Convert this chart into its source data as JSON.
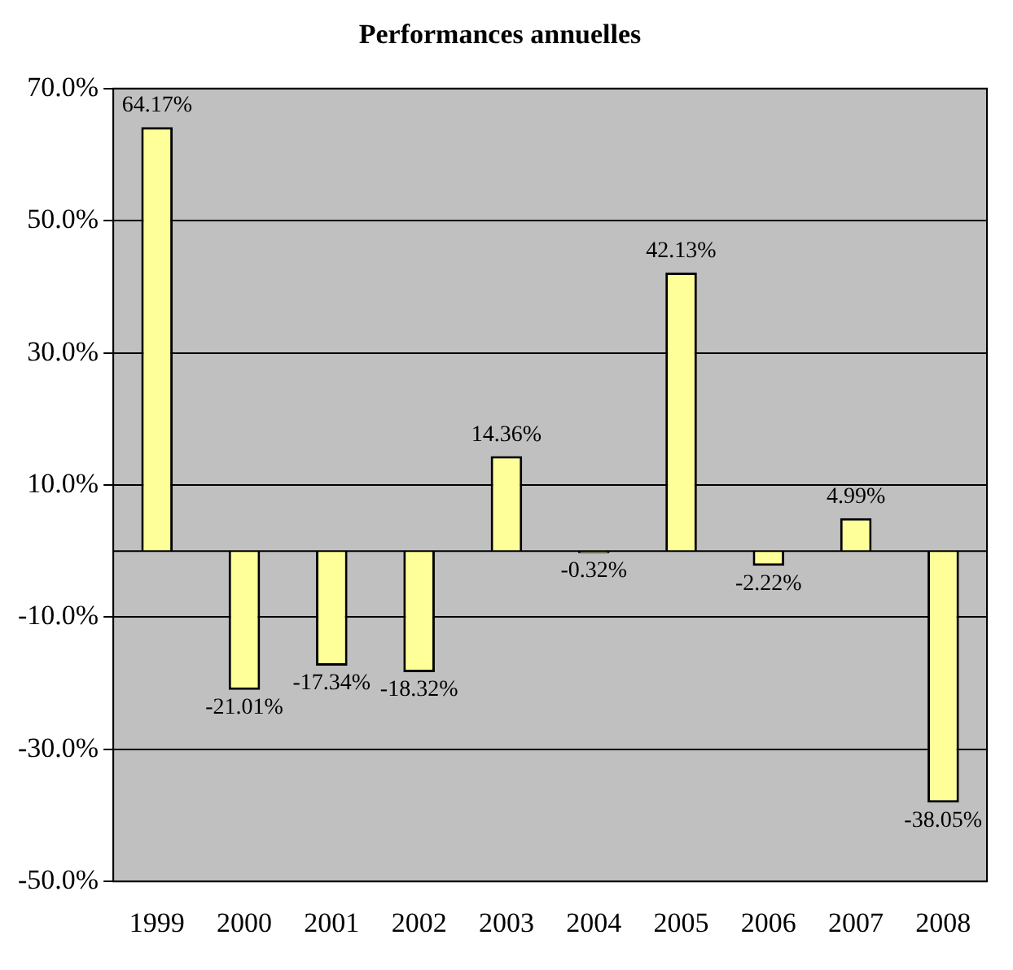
{
  "chart_data": {
    "type": "bar",
    "title": "Performances annuelles",
    "categories": [
      "1999",
      "2000",
      "2001",
      "2002",
      "2003",
      "2004",
      "2005",
      "2006",
      "2007",
      "2008"
    ],
    "values": [
      64.17,
      -21.01,
      -17.34,
      -18.32,
      14.36,
      -0.32,
      42.13,
      -2.22,
      4.99,
      -38.05
    ],
    "value_labels": [
      "64.17%",
      "-21.01%",
      "-17.34%",
      "-18.32%",
      "14.36%",
      "-0.32%",
      "42.13%",
      "-2.22%",
      "4.99%",
      "-38.05%"
    ],
    "color": "#ffff99",
    "ylim": [
      -50,
      70
    ],
    "yticks": [
      {
        "value": -50,
        "label": "-50.0%"
      },
      {
        "value": -30,
        "label": "-30.0%"
      },
      {
        "value": -10,
        "label": "-10.0%"
      },
      {
        "value": 10,
        "label": "10.0%"
      },
      {
        "value": 30,
        "label": "30.0%"
      },
      {
        "value": 50,
        "label": "50.0%"
      },
      {
        "value": 70,
        "label": "70.0%"
      }
    ],
    "grid": "y",
    "legend": false
  }
}
